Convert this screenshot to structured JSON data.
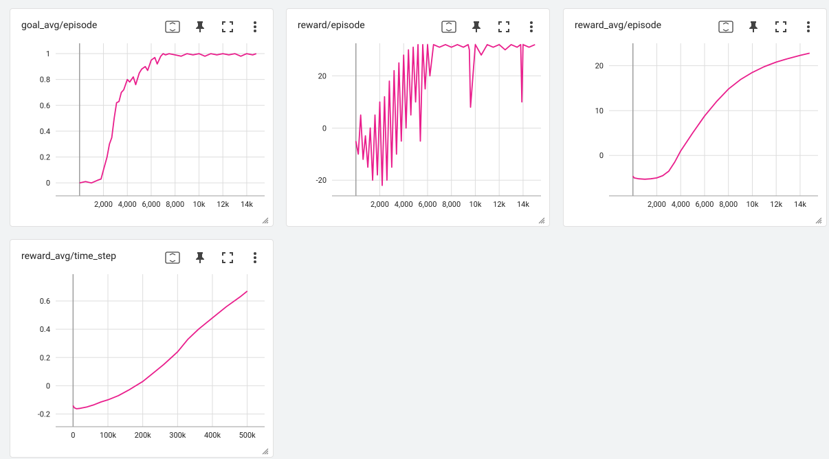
{
  "colors": {
    "line": "#e91e8c",
    "grid": "#dddddd",
    "axis": "#9e9e9e",
    "icon": "#424242"
  },
  "icons": [
    "fit-domain-icon",
    "pin-icon",
    "fullscreen-icon",
    "more-vert-icon"
  ],
  "cards": [
    {
      "title": "goal_avg/episode"
    },
    {
      "title": "reward/episode"
    },
    {
      "title": "reward_avg/episode"
    },
    {
      "title": "reward_avg/time_step"
    }
  ],
  "chart_data": [
    {
      "type": "line",
      "title": "goal_avg/episode",
      "xlabel": "",
      "ylabel": "",
      "xlim": [
        -2000,
        15500
      ],
      "ylim": [
        -0.1,
        1.08
      ],
      "grid": true,
      "xticks": [
        "2,000",
        "4,000",
        "6,000",
        "8,000",
        "10k",
        "12k",
        "14k"
      ],
      "xtick_values": [
        2000,
        4000,
        6000,
        8000,
        10000,
        12000,
        14000
      ],
      "yticks": [
        "0",
        "0.2",
        "0.4",
        "0.6",
        "0.8",
        "1"
      ],
      "ytick_values": [
        0,
        0.2,
        0.4,
        0.6,
        0.8,
        1
      ],
      "series": [
        {
          "x": [
            0,
            500,
            1000,
            1500,
            1800,
            2000,
            2300,
            2500,
            2700,
            2900,
            3100,
            3300,
            3500,
            3700,
            4000,
            4200,
            4500,
            4700,
            5000,
            5200,
            5500,
            5700,
            6000,
            6300,
            6500,
            6800,
            7000,
            7200,
            7500,
            8000,
            8500,
            9000,
            9500,
            10000,
            10500,
            11000,
            11500,
            12000,
            12500,
            13000,
            13500,
            14000,
            14500,
            14800
          ],
          "y": [
            0,
            0.01,
            0,
            0.02,
            0.03,
            0.1,
            0.2,
            0.3,
            0.35,
            0.5,
            0.62,
            0.63,
            0.7,
            0.72,
            0.8,
            0.78,
            0.82,
            0.76,
            0.85,
            0.88,
            0.9,
            0.87,
            0.95,
            0.97,
            0.92,
            0.98,
            1,
            0.99,
            1,
            0.99,
            0.98,
            1,
            0.99,
            1,
            0.98,
            1,
            0.99,
            1,
            0.99,
            1,
            0.98,
            1,
            0.99,
            1
          ]
        }
      ]
    },
    {
      "type": "line",
      "title": "reward/episode",
      "xlabel": "",
      "ylabel": "",
      "xlim": [
        -2000,
        15500
      ],
      "ylim": [
        -26,
        32.5
      ],
      "grid": true,
      "xticks": [
        "2,000",
        "4,000",
        "6,000",
        "8,000",
        "10k",
        "12k",
        "14k"
      ],
      "xtick_values": [
        2000,
        4000,
        6000,
        8000,
        10000,
        12000,
        14000
      ],
      "yticks": [
        "-20",
        "0",
        "20"
      ],
      "ytick_values": [
        -20,
        0,
        20
      ],
      "series": [
        {
          "x": [
            0,
            200,
            400,
            600,
            800,
            1000,
            1200,
            1400,
            1600,
            1800,
            2000,
            2200,
            2400,
            2600,
            2800,
            3000,
            3200,
            3400,
            3600,
            3800,
            4000,
            4200,
            4400,
            4600,
            4800,
            5000,
            5200,
            5400,
            5600,
            5800,
            6000,
            6200,
            6500,
            7000,
            7500,
            8000,
            8500,
            9000,
            9400,
            9500,
            9600,
            10000,
            10500,
            11000,
            11500,
            12000,
            12500,
            13000,
            13500,
            13800,
            13900,
            14000,
            14500,
            15000
          ],
          "y": [
            -5,
            -10,
            5,
            -12,
            -3,
            -15,
            0,
            -20,
            5,
            -18,
            10,
            -22,
            12,
            -20,
            18,
            -15,
            22,
            -10,
            25,
            -5,
            28,
            0,
            30,
            5,
            31,
            10,
            32,
            -5,
            32,
            15,
            32,
            20,
            32,
            31,
            32,
            31,
            32,
            31,
            32,
            30,
            8,
            32,
            28,
            32,
            31,
            32,
            30,
            32,
            31,
            32,
            10,
            32,
            31,
            32
          ]
        }
      ]
    },
    {
      "type": "line",
      "title": "reward_avg/episode",
      "xlabel": "",
      "ylabel": "",
      "xlim": [
        -2000,
        15500
      ],
      "ylim": [
        -9,
        25
      ],
      "grid": true,
      "xticks": [
        "2,000",
        "4,000",
        "6,000",
        "8,000",
        "10k",
        "12k",
        "14k"
      ],
      "xtick_values": [
        2000,
        4000,
        6000,
        8000,
        10000,
        12000,
        14000
      ],
      "yticks": [
        "0",
        "10",
        "20"
      ],
      "ytick_values": [
        0,
        10,
        20
      ],
      "series": [
        {
          "x": [
            0,
            100,
            500,
            1000,
            1500,
            2000,
            2500,
            3000,
            3500,
            4000,
            5000,
            6000,
            7000,
            8000,
            9000,
            10000,
            11000,
            12000,
            13000,
            14000,
            14800
          ],
          "y": [
            -4.6,
            -5,
            -5.2,
            -5.3,
            -5.2,
            -5,
            -4.5,
            -3.5,
            -1.5,
            1,
            5,
            8.8,
            12,
            14.8,
            16.9,
            18.5,
            19.8,
            20.8,
            21.6,
            22.3,
            22.8
          ]
        }
      ]
    },
    {
      "type": "line",
      "title": "reward_avg/time_step",
      "xlabel": "",
      "ylabel": "",
      "xlim": [
        -50000,
        550000
      ],
      "ylim": [
        -0.29,
        0.79
      ],
      "grid": true,
      "xticks": [
        "0",
        "100k",
        "200k",
        "300k",
        "400k",
        "500k"
      ],
      "xtick_values": [
        0,
        100000,
        200000,
        300000,
        400000,
        500000
      ],
      "yticks": [
        "-0.2",
        "0",
        "0.2",
        "0.4",
        "0.6"
      ],
      "ytick_values": [
        -0.2,
        0,
        0.2,
        0.4,
        0.6
      ],
      "series": [
        {
          "x": [
            0,
            3000,
            10000,
            20000,
            40000,
            60000,
            80000,
            100000,
            130000,
            160000,
            180000,
            200000,
            230000,
            260000,
            300000,
            330000,
            360000,
            400000,
            440000,
            480000,
            500000
          ],
          "y": [
            -0.14,
            -0.155,
            -0.163,
            -0.16,
            -0.15,
            -0.135,
            -0.115,
            -0.1,
            -0.07,
            -0.03,
            0,
            0.03,
            0.09,
            0.15,
            0.24,
            0.33,
            0.4,
            0.48,
            0.56,
            0.63,
            0.67
          ]
        }
      ]
    }
  ]
}
